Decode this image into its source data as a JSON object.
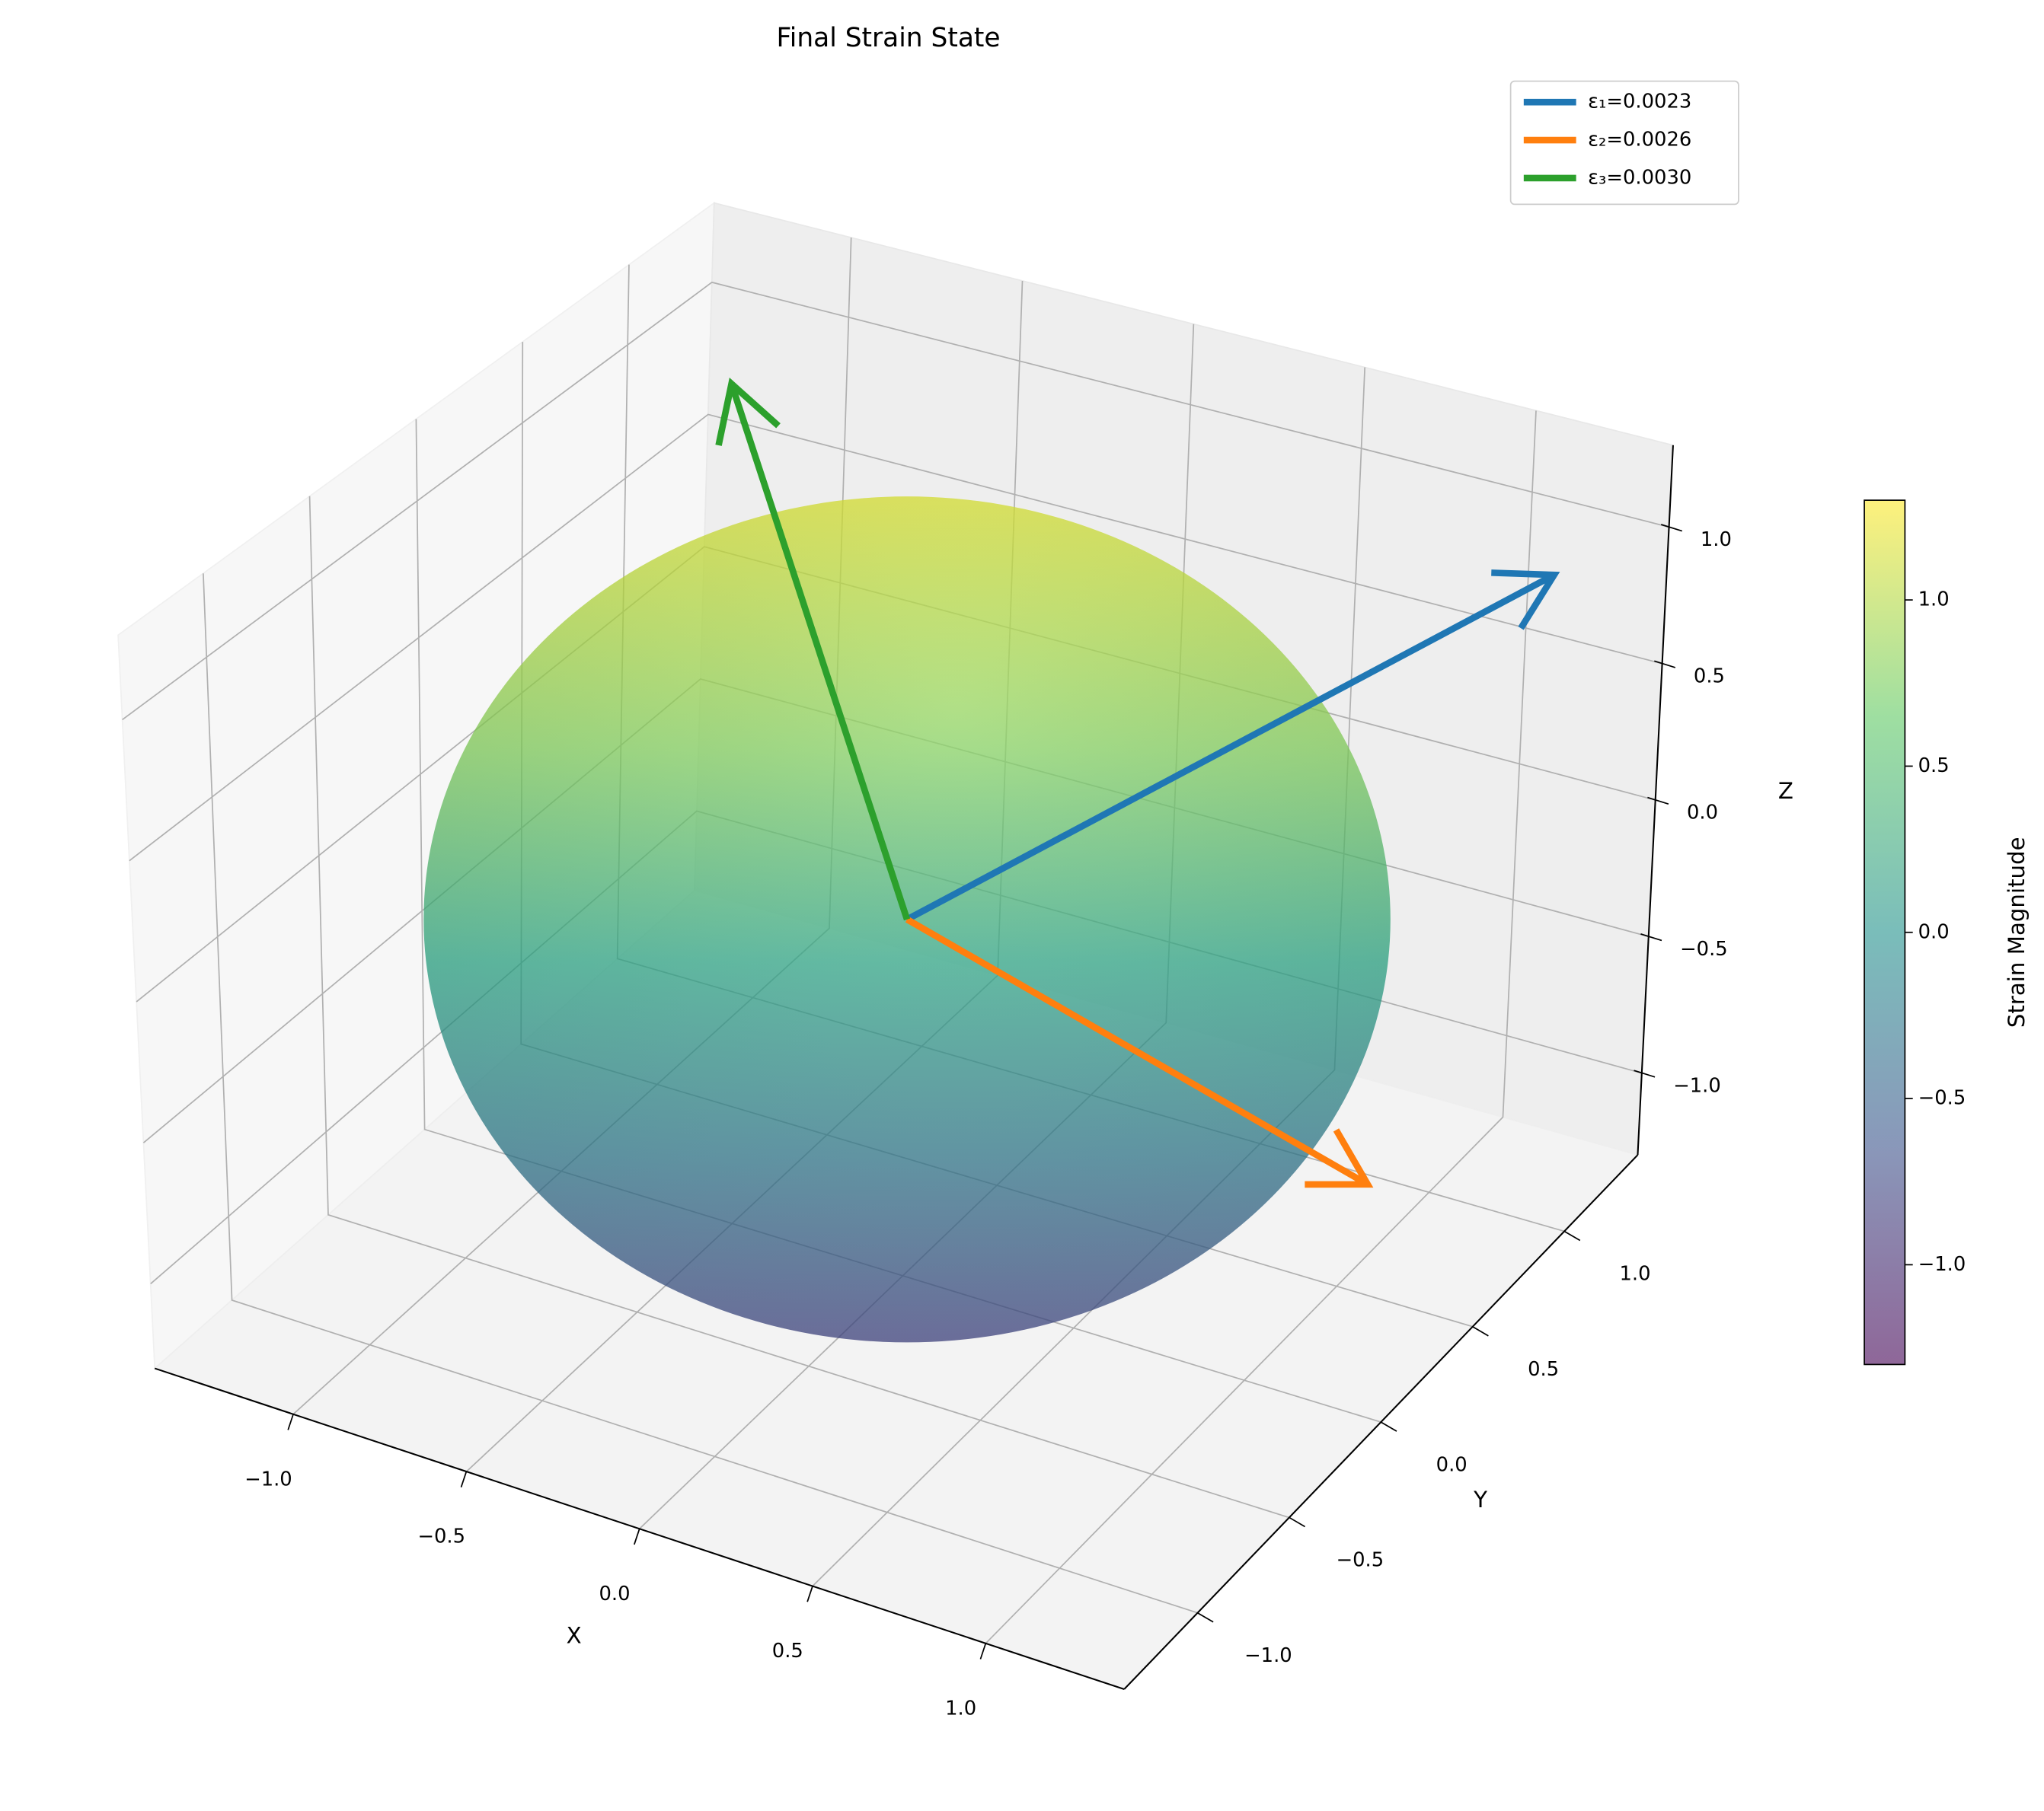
{
  "chart_data": {
    "type": "surface3d",
    "title": "Final Strain State",
    "xlabel": "X",
    "ylabel": "Y",
    "zlabel": "Z",
    "xlim": [
      -1.4,
      1.4
    ],
    "ylim": [
      -1.4,
      1.4
    ],
    "zlim": [
      -1.3,
      1.3
    ],
    "xticks": [
      {
        "value": -1,
        "label": "−1.0"
      },
      {
        "value": -0.5,
        "label": "−0.5"
      },
      {
        "value": 0,
        "label": "0.0"
      },
      {
        "value": 0.5,
        "label": "0.5"
      },
      {
        "value": 1,
        "label": "1.0"
      }
    ],
    "yticks": [
      {
        "value": -1,
        "label": "−1.0"
      },
      {
        "value": -0.5,
        "label": "−0.5"
      },
      {
        "value": 0,
        "label": "0.0"
      },
      {
        "value": 0.5,
        "label": "0.5"
      },
      {
        "value": 1,
        "label": "1.0"
      }
    ],
    "zticks": [
      {
        "value": -1,
        "label": "−1.0"
      },
      {
        "value": -0.5,
        "label": "−0.5"
      },
      {
        "value": 0,
        "label": "0.0"
      },
      {
        "value": 0.5,
        "label": "0.5"
      },
      {
        "value": 1,
        "label": "1.0"
      }
    ],
    "grid": true,
    "legend": "upper right",
    "series": [
      {
        "name": "ε₁=0.0023",
        "color": "#1f77b4",
        "vector": [
          1.18,
          1.2,
          0.89
        ]
      },
      {
        "name": "ε₂=0.0026",
        "color": "#ff7f0e",
        "vector": [
          1.43,
          -0.18,
          -0.3
        ]
      },
      {
        "name": "ε₃=0.0030",
        "color": "#2ca02c",
        "vector": [
          -0.7,
          0.325,
          1.5
        ]
      }
    ],
    "colorbar": {
      "label": "Strain Magnitude",
      "lim": [
        -1.3,
        1.3
      ],
      "ticks": [
        {
          "value": -1,
          "label": "−1.0"
        },
        {
          "value": -0.5,
          "label": "−0.5"
        },
        {
          "value": 0,
          "label": "0.0"
        },
        {
          "value": 0.5,
          "label": "0.5"
        },
        {
          "value": 1,
          "label": "1.0"
        }
      ]
    }
  }
}
